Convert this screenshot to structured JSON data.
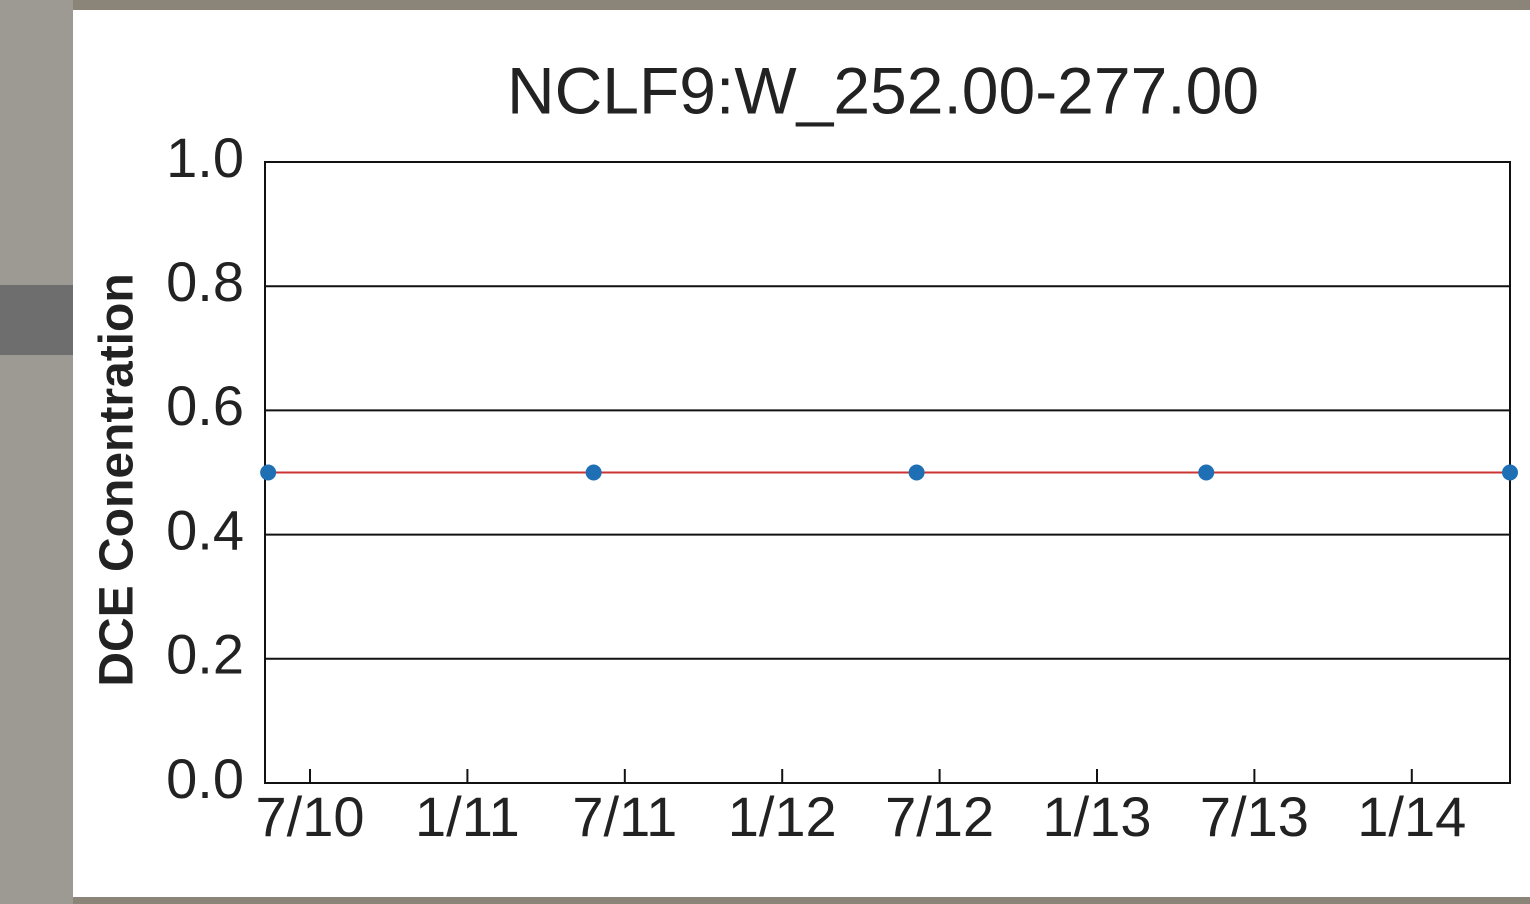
{
  "chart_data": {
    "type": "line",
    "title": "NCLF9:W_252.00-277.00",
    "y_label": "DCE Conentration",
    "x": [
      2010.367,
      2011.401,
      2012.427,
      2013.347,
      2014.312
    ],
    "series": [
      {
        "color": "#cc3333",
        "marker_color": "#1f6fb5",
        "values": [
          0.5,
          0.5,
          0.5,
          0.5,
          0.5
        ]
      }
    ],
    "xlim": [
      2010.357,
      2014.312
    ],
    "xticks": [
      {
        "value": 2010.5,
        "label": "7/10"
      },
      {
        "value": 2011.0,
        "label": "1/11"
      },
      {
        "value": 2011.5,
        "label": "7/11"
      },
      {
        "value": 2012.0,
        "label": "1/12"
      },
      {
        "value": 2012.5,
        "label": "7/12"
      },
      {
        "value": 2013.0,
        "label": "1/13"
      },
      {
        "value": 2013.5,
        "label": "7/13"
      },
      {
        "value": 2014.0,
        "label": "1/14"
      }
    ],
    "ylim": [
      0,
      1
    ],
    "yticks": [
      {
        "value": 0,
        "label": "0.0"
      },
      {
        "value": 0.2,
        "label": "0.2"
      },
      {
        "value": 0.4,
        "label": "0.4"
      },
      {
        "value": 0.6,
        "label": "0.6"
      },
      {
        "value": 0.8,
        "label": "0.8"
      },
      {
        "value": 1,
        "label": "1.0"
      }
    ],
    "grid": true
  }
}
